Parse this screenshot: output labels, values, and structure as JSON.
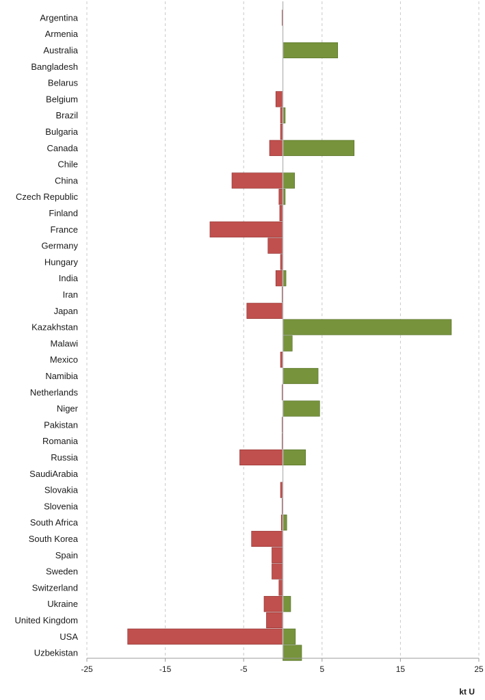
{
  "chart_data": {
    "type": "bar",
    "orientation": "horizontal",
    "stacked": "diverging",
    "categories": [
      "Argentina",
      "Armenia",
      "Australia",
      "Bangladesh",
      "Belarus",
      "Belgium",
      "Brazil",
      "Bulgaria",
      "Canada",
      "Chile",
      "China",
      "Czech Republic",
      "Finland",
      "France",
      "Germany",
      "Hungary",
      "India",
      "Iran",
      "Japan",
      "Kazakhstan",
      "Malawi",
      "Mexico",
      "Namibia",
      "Netherlands",
      "Niger",
      "Pakistan",
      "Romania",
      "Russia",
      "SaudiArabia",
      "Slovakia",
      "Slovenia",
      "South Africa",
      "South Korea",
      "Spain",
      "Sweden",
      "Switzerland",
      "Ukraine",
      "United Kingdom",
      "USA",
      "Uzbekistan"
    ],
    "series": [
      {
        "color": "#c0504d",
        "values": [
          -0.1,
          0,
          0,
          0,
          0,
          -0.9,
          -0.3,
          -0.3,
          -1.7,
          0,
          -6.5,
          -0.5,
          -0.4,
          -9.3,
          -1.9,
          -0.3,
          -0.9,
          -0.1,
          -4.6,
          0,
          0,
          -0.3,
          0,
          -0.1,
          0,
          -0.1,
          -0.1,
          -5.5,
          0,
          -0.3,
          -0.1,
          -0.2,
          -4.0,
          -1.4,
          -1.4,
          -0.5,
          -2.4,
          -2.1,
          -19.8,
          0
        ]
      },
      {
        "color": "#77933c",
        "values": [
          0,
          0,
          7.0,
          0,
          0,
          0,
          0.3,
          0,
          9.1,
          0,
          1.5,
          0.3,
          0,
          0,
          0,
          0,
          0.4,
          0,
          0,
          21.5,
          1.2,
          0,
          4.5,
          0,
          4.7,
          0,
          0,
          2.9,
          0,
          0,
          0,
          0.5,
          0,
          0,
          0,
          0,
          1.0,
          0,
          1.6,
          2.4
        ]
      }
    ],
    "xticks": [
      "-25",
      "-15",
      "-5",
      "5",
      "15",
      "25"
    ],
    "xlim": [
      -25,
      25
    ],
    "xlabel": "kt U",
    "grid": true
  }
}
